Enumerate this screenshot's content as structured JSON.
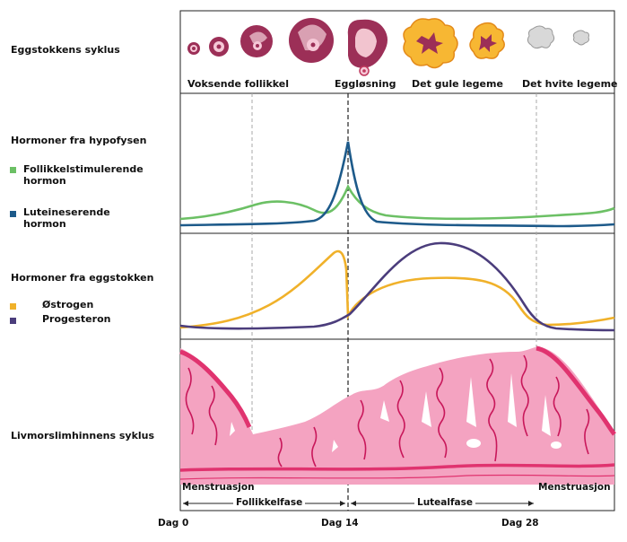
{
  "rows": {
    "ovary": "Eggstokkens syklus",
    "pituitary": "Hormoner fra hypofysen",
    "ovary_hormones": "Hormoner fra eggstokken",
    "endometrium": "Livmorslimhinnens syklus"
  },
  "ovary_stages": {
    "growing": "Voksende follikkel",
    "ovulation": "Eggløsning",
    "corpus_luteum": "Det gule legeme",
    "corpus_albicans": "Det hvite legeme"
  },
  "legend": {
    "fsh_line1": "Follikkelstimulerende",
    "fsh_line2": "hormon",
    "lh_line1": "Luteineserende",
    "lh_line2": "hormon",
    "estrogen": "Østrogen",
    "progesterone": "Progesteron"
  },
  "phases": {
    "menstruation_left": "Menstruasjon",
    "menstruation_right": "Menstruasjon",
    "follicular": "Follikkelfase",
    "luteal": "Lutealfase"
  },
  "days": {
    "day0": "Dag 0",
    "day14": "Dag 14",
    "day28": "Dag 28"
  },
  "colors": {
    "fsh": "#6cc065",
    "lh": "#1d5a8a",
    "estrogen": "#f0b12a",
    "progesterone": "#4b3d7c",
    "endometrium": "#f4a3c1",
    "endometrium_dark": "#e0336f",
    "follicle": "#9c2f57",
    "corpus_luteum": "#f7b733"
  }
}
